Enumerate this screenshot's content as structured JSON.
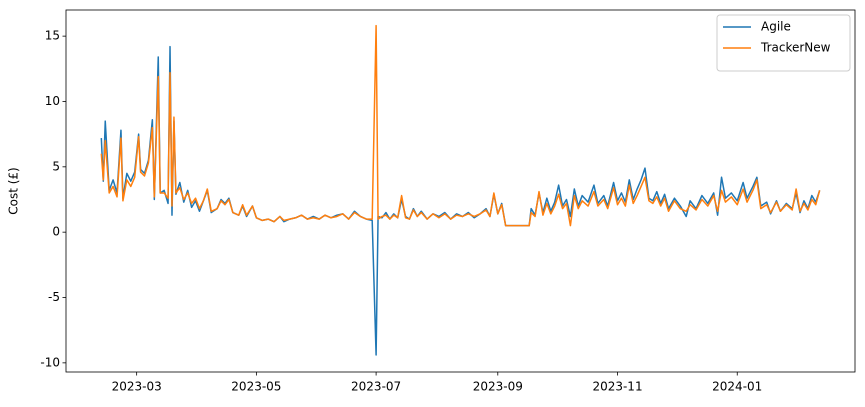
{
  "chart_data": {
    "type": "line",
    "y_label": "Cost (£)",
    "x": [
      19399,
      19400,
      19401,
      19403,
      19405,
      19407,
      19409,
      19410,
      19412,
      19414,
      19416,
      19418,
      19419,
      19421,
      19423,
      19425,
      19426,
      19428,
      19429,
      19431,
      19433,
      19434,
      19435,
      19436,
      19437,
      19439,
      19441,
      19443,
      19445,
      19447,
      19449,
      19451,
      19453,
      19455,
      19458,
      19460,
      19462,
      19464,
      19466,
      19469,
      19471,
      19473,
      19476,
      19478,
      19481,
      19484,
      19487,
      19490,
      19492,
      19495,
      19498,
      19501,
      19504,
      19507,
      19510,
      19513,
      19516,
      19519,
      19522,
      19525,
      19528,
      19531,
      19534,
      19537,
      19539,
      19540,
      19542,
      19544,
      19546,
      19548,
      19550,
      19552,
      19554,
      19556,
      19558,
      19560,
      19562,
      19565,
      19568,
      19571,
      19574,
      19577,
      19580,
      19583,
      19586,
      19589,
      19592,
      19595,
      19597,
      19599,
      19601,
      19603,
      19605,
      19617,
      19618,
      19620,
      19622,
      19624,
      19626,
      19628,
      19630,
      19632,
      19634,
      19636,
      19638,
      19640,
      19642,
      19644,
      19647,
      19650,
      19652,
      19655,
      19657,
      19660,
      19662,
      19664,
      19666,
      19668,
      19670,
      19672,
      19674,
      19676,
      19678,
      19680,
      19682,
      19684,
      19686,
      19688,
      19691,
      19694,
      19697,
      19699,
      19702,
      19705,
      19708,
      19711,
      19713,
      19715,
      19717,
      19720,
      19723,
      19726,
      19728,
      19731,
      19733,
      19735,
      19738,
      19740,
      19743,
      19745,
      19748,
      19751,
      19753,
      19755,
      19757,
      19759,
      19761,
      19763,
      19765
    ],
    "series": [
      {
        "name": "Agile",
        "color": "#1f77b4",
        "values": [
          7.2,
          3.9,
          8.5,
          3.2,
          4.0,
          3.0,
          7.8,
          2.6,
          4.5,
          3.9,
          4.6,
          7.5,
          4.8,
          4.5,
          5.5,
          8.6,
          2.5,
          13.4,
          3.0,
          3.2,
          2.2,
          14.2,
          1.3,
          8.5,
          2.9,
          3.8,
          2.3,
          3.2,
          1.9,
          2.4,
          1.6,
          2.4,
          3.2,
          1.5,
          1.8,
          2.5,
          2.2,
          2.6,
          1.5,
          1.3,
          2.0,
          1.2,
          2.0,
          1.1,
          0.9,
          1.0,
          0.8,
          1.2,
          0.8,
          1.0,
          1.1,
          1.3,
          1.0,
          1.2,
          1.0,
          1.3,
          1.1,
          1.3,
          1.4,
          1.0,
          1.6,
          1.2,
          1.0,
          0.9,
          -9.4,
          1.2,
          1.1,
          1.5,
          1.0,
          1.4,
          1.1,
          2.5,
          1.2,
          1.0,
          1.8,
          1.2,
          1.6,
          1.0,
          1.4,
          1.2,
          1.5,
          1.0,
          1.4,
          1.2,
          1.5,
          1.1,
          1.4,
          1.8,
          1.2,
          2.9,
          1.4,
          2.2,
          0.5,
          0.5,
          1.8,
          1.3,
          3.0,
          1.5,
          2.6,
          1.6,
          2.3,
          3.6,
          2.0,
          2.5,
          1.2,
          3.3,
          2.0,
          2.8,
          2.3,
          3.6,
          2.2,
          2.8,
          2.0,
          3.8,
          2.4,
          3.0,
          2.3,
          4.0,
          2.5,
          3.3,
          4.0,
          4.9,
          2.6,
          2.4,
          3.1,
          2.2,
          2.9,
          1.8,
          2.6,
          2.0,
          1.2,
          2.4,
          1.8,
          2.8,
          2.2,
          3.0,
          1.3,
          4.2,
          2.6,
          3.0,
          2.4,
          3.8,
          2.6,
          3.5,
          4.2,
          2.0,
          2.3,
          1.4,
          2.4,
          1.6,
          2.2,
          1.8,
          3.0,
          1.5,
          2.4,
          1.8,
          2.8,
          2.3,
          3.2
        ]
      },
      {
        "name": "TrackerNew",
        "color": "#ff7f0e",
        "values": [
          6.0,
          4.0,
          7.0,
          3.0,
          3.5,
          2.7,
          7.2,
          2.4,
          4.0,
          3.5,
          4.2,
          7.3,
          4.6,
          4.3,
          5.3,
          8.0,
          2.7,
          11.9,
          3.0,
          3.0,
          2.6,
          12.2,
          2.0,
          8.8,
          3.0,
          3.4,
          2.5,
          3.0,
          2.2,
          2.6,
          1.8,
          2.4,
          3.3,
          1.6,
          1.8,
          2.4,
          2.1,
          2.5,
          1.5,
          1.3,
          2.1,
          1.3,
          2.0,
          1.1,
          0.9,
          1.0,
          0.8,
          1.2,
          0.9,
          1.0,
          1.1,
          1.3,
          1.0,
          1.1,
          1.0,
          1.3,
          1.1,
          1.2,
          1.4,
          1.0,
          1.5,
          1.2,
          1.0,
          1.0,
          15.8,
          1.0,
          1.2,
          1.3,
          1.0,
          1.3,
          1.1,
          2.8,
          1.1,
          1.0,
          1.7,
          1.2,
          1.5,
          1.0,
          1.4,
          1.1,
          1.4,
          1.0,
          1.3,
          1.2,
          1.4,
          1.2,
          1.4,
          1.7,
          1.2,
          3.0,
          1.4,
          2.1,
          0.5,
          0.5,
          1.5,
          1.2,
          3.1,
          1.3,
          2.2,
          1.4,
          2.0,
          2.9,
          1.8,
          2.2,
          0.5,
          2.8,
          1.8,
          2.4,
          2.0,
          3.1,
          2.0,
          2.5,
          1.8,
          3.4,
          2.1,
          2.6,
          2.0,
          3.6,
          2.2,
          2.8,
          3.5,
          4.2,
          2.4,
          2.2,
          2.7,
          2.0,
          2.6,
          1.6,
          2.4,
          1.8,
          1.6,
          2.1,
          1.7,
          2.5,
          2.0,
          2.8,
          1.6,
          3.2,
          2.3,
          2.7,
          2.1,
          3.3,
          2.3,
          3.2,
          4.0,
          1.8,
          2.1,
          1.5,
          2.3,
          1.6,
          2.1,
          1.7,
          3.3,
          1.6,
          2.2,
          1.7,
          2.5,
          2.1,
          3.2
        ]
      }
    ],
    "xlim": [
      19381,
      19783
    ],
    "xticks": [
      {
        "value": 19417,
        "label": "2023-03"
      },
      {
        "value": 19478,
        "label": "2023-05"
      },
      {
        "value": 19539,
        "label": "2023-07"
      },
      {
        "value": 19601,
        "label": "2023-09"
      },
      {
        "value": 19662,
        "label": "2023-11"
      },
      {
        "value": 19723,
        "label": "2024-01"
      }
    ],
    "ylim": [
      -10.7,
      17.0
    ],
    "yticks": [
      -10,
      -5,
      0,
      5,
      10,
      15
    ],
    "grid": false,
    "legend": "upper right"
  }
}
